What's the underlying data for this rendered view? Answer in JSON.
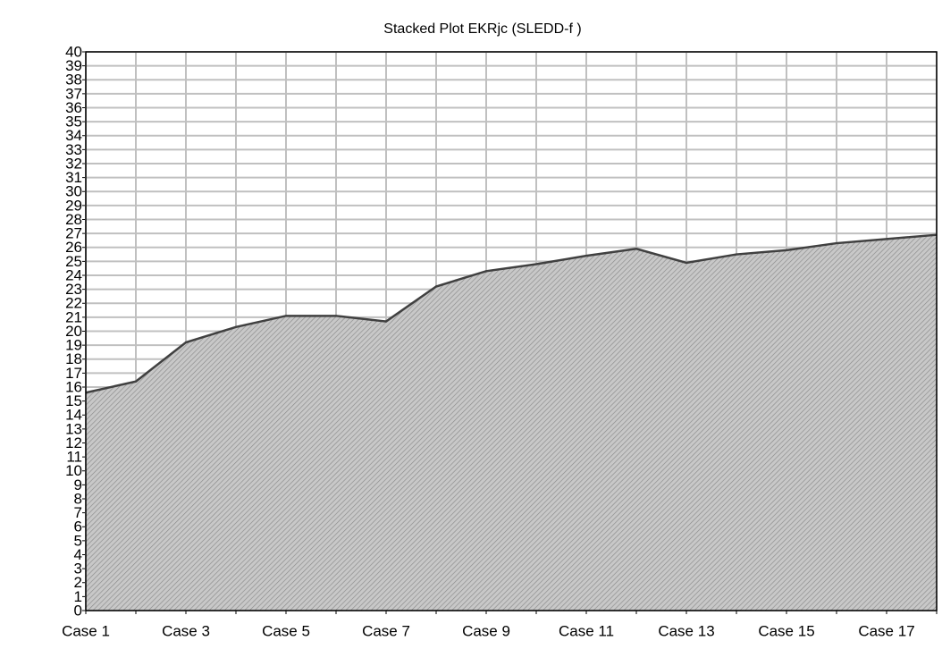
{
  "chart_data": {
    "type": "area",
    "title": "Stacked Plot EKRjc (SLEDD-f )",
    "categories": [
      "Case 1",
      null,
      "Case 3",
      null,
      "Case 5",
      null,
      "Case 7",
      null,
      "Case 9",
      null,
      "Case 11",
      null,
      "Case 13",
      null,
      "Case 15",
      null,
      "Case 17",
      null
    ],
    "values": [
      15.6,
      16.4,
      19.2,
      20.3,
      21.1,
      21.1,
      20.7,
      23.2,
      24.3,
      24.8,
      25.4,
      25.9,
      24.9,
      25.5,
      25.8,
      26.3,
      26.6,
      26.9
    ],
    "color": "#b4b4b4",
    "ylim": [
      0,
      40
    ],
    "yticks": [
      0,
      1,
      2,
      3,
      4,
      5,
      6,
      7,
      8,
      9,
      10,
      11,
      12,
      13,
      14,
      15,
      16,
      17,
      18,
      19,
      20,
      21,
      22,
      23,
      24,
      25,
      26,
      27,
      28,
      29,
      30,
      31,
      32,
      33,
      34,
      35,
      36,
      37,
      38,
      39,
      40
    ],
    "grid": true
  }
}
